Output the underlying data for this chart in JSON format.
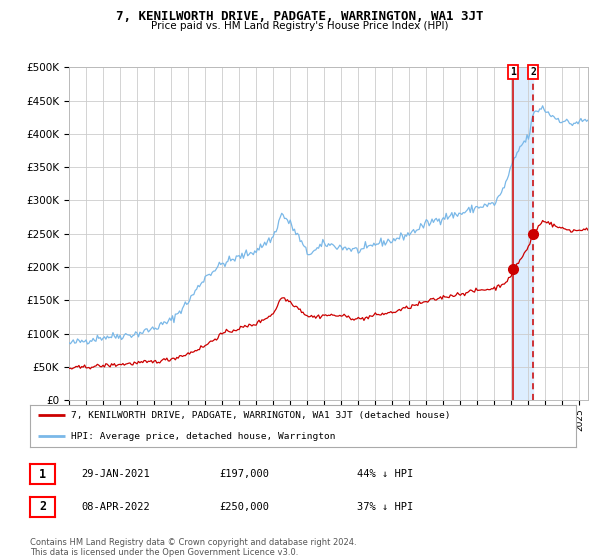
{
  "title": "7, KENILWORTH DRIVE, PADGATE, WARRINGTON, WA1 3JT",
  "subtitle": "Price paid vs. HM Land Registry's House Price Index (HPI)",
  "legend_line1": "7, KENILWORTH DRIVE, PADGATE, WARRINGTON, WA1 3JT (detached house)",
  "legend_line2": "HPI: Average price, detached house, Warrington",
  "sale1_date": "29-JAN-2021",
  "sale1_price": 197000,
  "sale1_pct": "44%",
  "sale2_date": "08-APR-2022",
  "sale2_price": 250000,
  "sale2_pct": "37%",
  "footer": "Contains HM Land Registry data © Crown copyright and database right 2024.\nThis data is licensed under the Open Government Licence v3.0.",
  "hpi_color": "#7ab8e8",
  "price_color": "#cc0000",
  "marker_color": "#cc0000",
  "vline1_color": "#cc0000",
  "vline2_color": "#cc0000",
  "shade_color": "#ddeeff",
  "grid_color": "#cccccc",
  "bg_color": "#ffffff",
  "ylim": [
    0,
    500000
  ],
  "yticks": [
    0,
    50000,
    100000,
    150000,
    200000,
    250000,
    300000,
    350000,
    400000,
    450000,
    500000
  ],
  "sale1_x": 2021.08,
  "sale2_x": 2022.27,
  "xstart": 1995.0,
  "xend": 2025.5,
  "hpi_anchors_x": [
    1995.0,
    1996.0,
    1997.0,
    1998.0,
    1999.0,
    2000.0,
    2001.0,
    2002.0,
    2003.0,
    2004.0,
    2005.0,
    2006.0,
    2007.0,
    2007.5,
    2008.0,
    2008.5,
    2009.0,
    2009.5,
    2010.0,
    2011.0,
    2012.0,
    2012.5,
    2013.0,
    2014.0,
    2015.0,
    2016.0,
    2017.0,
    2018.0,
    2019.0,
    2020.0,
    2020.5,
    2021.0,
    2021.5,
    2022.0,
    2022.3,
    2022.8,
    2023.0,
    2023.5,
    2024.0,
    2024.5,
    2025.0,
    2025.4
  ],
  "hpi_anchors_y": [
    85000,
    90000,
    95000,
    97000,
    100000,
    108000,
    120000,
    148000,
    185000,
    205000,
    215000,
    225000,
    245000,
    280000,
    265000,
    245000,
    220000,
    225000,
    235000,
    230000,
    225000,
    227000,
    235000,
    240000,
    250000,
    265000,
    275000,
    280000,
    290000,
    295000,
    315000,
    350000,
    380000,
    395000,
    430000,
    440000,
    435000,
    425000,
    420000,
    415000,
    418000,
    420000
  ],
  "price_anchors_x": [
    1995.0,
    1996.0,
    1997.0,
    1998.0,
    1999.0,
    2000.0,
    2001.0,
    2002.0,
    2003.0,
    2004.0,
    2005.0,
    2006.0,
    2007.0,
    2007.5,
    2008.0,
    2008.5,
    2009.0,
    2009.5,
    2010.0,
    2011.0,
    2012.0,
    2012.5,
    2013.0,
    2014.0,
    2015.0,
    2016.0,
    2017.0,
    2018.0,
    2019.0,
    2020.0,
    2020.5,
    2021.0,
    2021.08,
    2021.5,
    2022.0,
    2022.27,
    2022.8,
    2023.0,
    2023.5,
    2024.0,
    2024.5,
    2025.0,
    2025.4
  ],
  "price_anchors_y": [
    48000,
    50000,
    52000,
    54000,
    56000,
    58000,
    62000,
    70000,
    82000,
    100000,
    108000,
    115000,
    130000,
    155000,
    148000,
    138000,
    127000,
    125000,
    128000,
    127000,
    122000,
    124000,
    128000,
    132000,
    140000,
    148000,
    155000,
    160000,
    165000,
    168000,
    175000,
    185000,
    197000,
    210000,
    230000,
    250000,
    268000,
    270000,
    262000,
    258000,
    255000,
    255000,
    258000
  ]
}
